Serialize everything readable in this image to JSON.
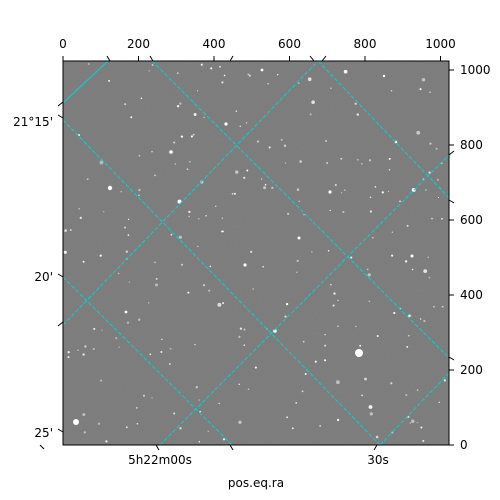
{
  "figure": {
    "x_label": "pos.eq.ra",
    "top_ticks": [
      "0",
      "200",
      "400",
      "600",
      "800",
      "1000"
    ],
    "right_ticks": [
      "0",
      "200",
      "400",
      "600",
      "800",
      "1000"
    ],
    "ra_ticks": [
      "5h22m00s",
      "30s"
    ],
    "dec_ticks": [
      "21°15'",
      "20'",
      "25'"
    ],
    "grid_color": "#00d4d4",
    "sky_background": "#7a7a7a",
    "star_color": "#ffffff"
  }
}
